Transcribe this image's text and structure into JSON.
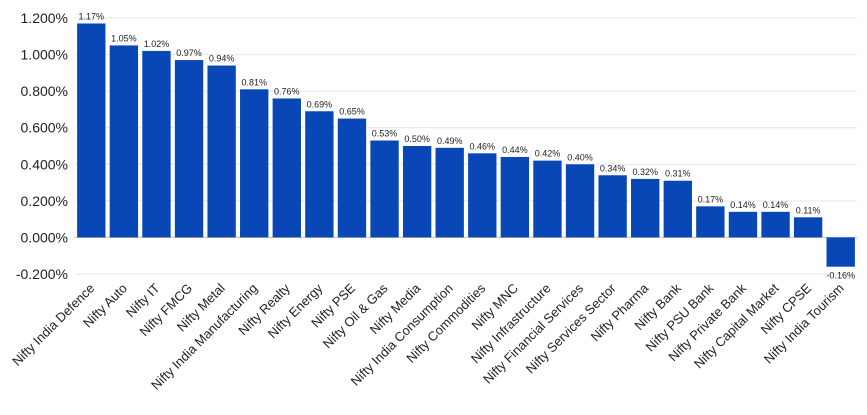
{
  "chart_data": {
    "type": "bar",
    "title": "",
    "xlabel": "",
    "ylabel": "",
    "ylim": [
      -0.002,
      0.012
    ],
    "ytick_step": 0.002,
    "yaxis_format": "percent_3dp",
    "grid": true,
    "bar_color": "#0847b5",
    "categories": [
      "Nifty India Defence",
      "Nifty Auto",
      "Nifty IT",
      "Nifty FMCG",
      "Nifty Metal",
      "Nifty India Manufacturing",
      "Nifty Realty",
      "Nifty Energy",
      "Nifty PSE",
      "Nifty Oil & Gas",
      "Nifty Media",
      "Nifty India Consumption",
      "Nifty Commodities",
      "Nifty MNC",
      "Nifty Infrastructure",
      "Nifty Financial Services",
      "Nifty Services Sector",
      "Nifty Pharma",
      "Nifty Bank",
      "Nifty PSU Bank",
      "Nifty Private Bank",
      "Nifty Capital Market",
      "Nifty CPSE",
      "Nifty India Tourism"
    ],
    "values": [
      0.0117,
      0.0105,
      0.0102,
      0.0097,
      0.0094,
      0.0081,
      0.0076,
      0.0069,
      0.0065,
      0.0053,
      0.005,
      0.0049,
      0.0046,
      0.0044,
      0.0042,
      0.004,
      0.0034,
      0.0032,
      0.0031,
      0.0017,
      0.0014,
      0.0014,
      0.0011,
      -0.0016
    ],
    "data_labels": [
      "1.17%",
      "1.05%",
      "1.02%",
      "0.97%",
      "0.94%",
      "0.81%",
      "0.76%",
      "0.69%",
      "0.65%",
      "0.53%",
      "0.50%",
      "0.49%",
      "0.46%",
      "0.44%",
      "0.42%",
      "0.40%",
      "0.34%",
      "0.32%",
      "0.31%",
      "0.17%",
      "0.14%",
      "0.14%",
      "0.11%",
      "-0.16%"
    ],
    "y_tick_labels": [
      "1.200%",
      "1.000%",
      "0.800%",
      "0.600%",
      "0.400%",
      "0.200%",
      "0.000%",
      "-0.200%"
    ]
  }
}
